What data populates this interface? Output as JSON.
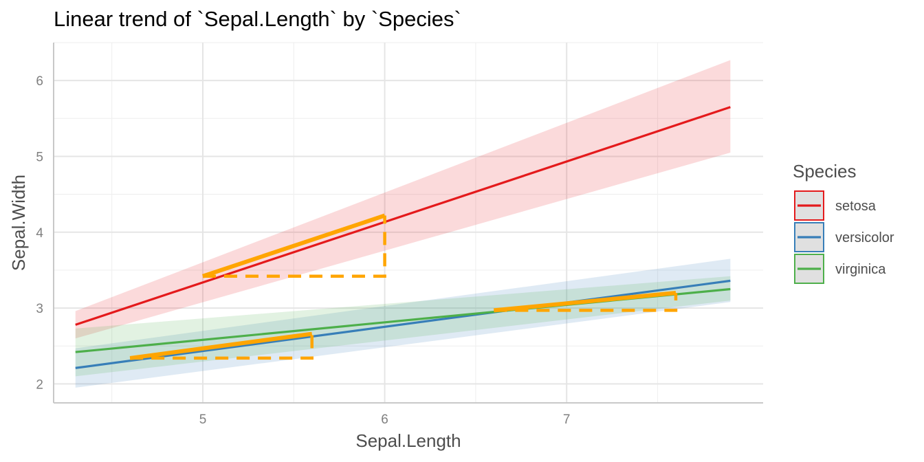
{
  "chart_data": {
    "type": "line",
    "title": "Linear trend of `Sepal.Length` by `Species`",
    "xlabel": "Sepal.Length",
    "ylabel": "Sepal.Width",
    "xlim": [
      4.18,
      8.08
    ],
    "ylim": [
      1.75,
      6.5
    ],
    "x_ticks": [
      5,
      6,
      7
    ],
    "y_ticks": [
      2,
      3,
      4,
      5,
      6
    ],
    "grid": true,
    "legend": {
      "title": "Species",
      "placement": "right"
    },
    "series": [
      {
        "name": "setosa",
        "color": "#e41a1c",
        "x": [
          4.3,
          7.9
        ],
        "y": [
          2.78,
          5.65
        ],
        "ci_lower": [
          2.6,
          5.05
        ],
        "ci_upper": [
          2.96,
          6.27
        ]
      },
      {
        "name": "versicolor",
        "color": "#377eb8",
        "x": [
          4.3,
          7.9
        ],
        "y": [
          2.21,
          3.36
        ],
        "ci_lower": [
          1.95,
          3.08
        ],
        "ci_upper": [
          2.47,
          3.65
        ]
      },
      {
        "name": "virginica",
        "color": "#4daf4a",
        "x": [
          4.3,
          7.9
        ],
        "y": [
          2.42,
          3.25
        ],
        "ci_lower": [
          2.1,
          3.1
        ],
        "ci_upper": [
          2.73,
          3.42
        ]
      }
    ],
    "annotations": [
      {
        "type": "slope-triangle",
        "color": "#ffa500",
        "x_start": 5.0,
        "x_end": 6.0,
        "y_start": 3.42,
        "y_end": 4.22
      },
      {
        "type": "slope-triangle",
        "color": "#ffa500",
        "x_start": 4.6,
        "x_end": 5.6,
        "y_start": 2.34,
        "y_end": 2.66
      },
      {
        "type": "slope-triangle",
        "color": "#ffa500",
        "x_start": 6.6,
        "x_end": 7.6,
        "y_start": 2.97,
        "y_end": 3.2
      }
    ]
  }
}
